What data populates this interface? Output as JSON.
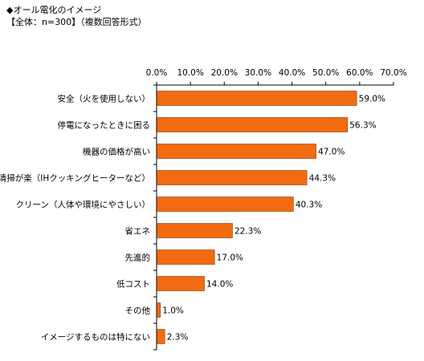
{
  "header": {
    "title": "◆オール電化のイメージ",
    "subtitle": "【全体：n=300】（複数回答形式）"
  },
  "chart_data": {
    "type": "bar",
    "orientation": "horizontal",
    "categories": [
      "安全（火を使用しない）",
      "停電になったときに困る",
      "機器の価格が高い",
      "清掃が楽（IHクッキングヒーターなど）",
      "クリーン（人体や環境にやさしい）",
      "省エネ",
      "先進的",
      "低コスト",
      "その他",
      "イメージするものは特にない"
    ],
    "values": [
      59.0,
      56.3,
      47.0,
      44.3,
      40.3,
      22.3,
      17.0,
      14.0,
      1.0,
      2.3
    ],
    "value_labels": [
      "59.0%",
      "56.3%",
      "47.0%",
      "44.3%",
      "40.3%",
      "22.3%",
      "17.0%",
      "14.0%",
      "1.0%",
      "2.3%"
    ],
    "x_ticks": [
      "0.0%",
      "10.0%",
      "20.0%",
      "30.0%",
      "40.0%",
      "50.0%",
      "60.0%",
      "70.0%"
    ],
    "xlim": [
      0,
      70
    ],
    "axis_position": "top",
    "grid": false,
    "bar_color": "#f26b10",
    "bar_edge_color": "#8a3a00"
  }
}
